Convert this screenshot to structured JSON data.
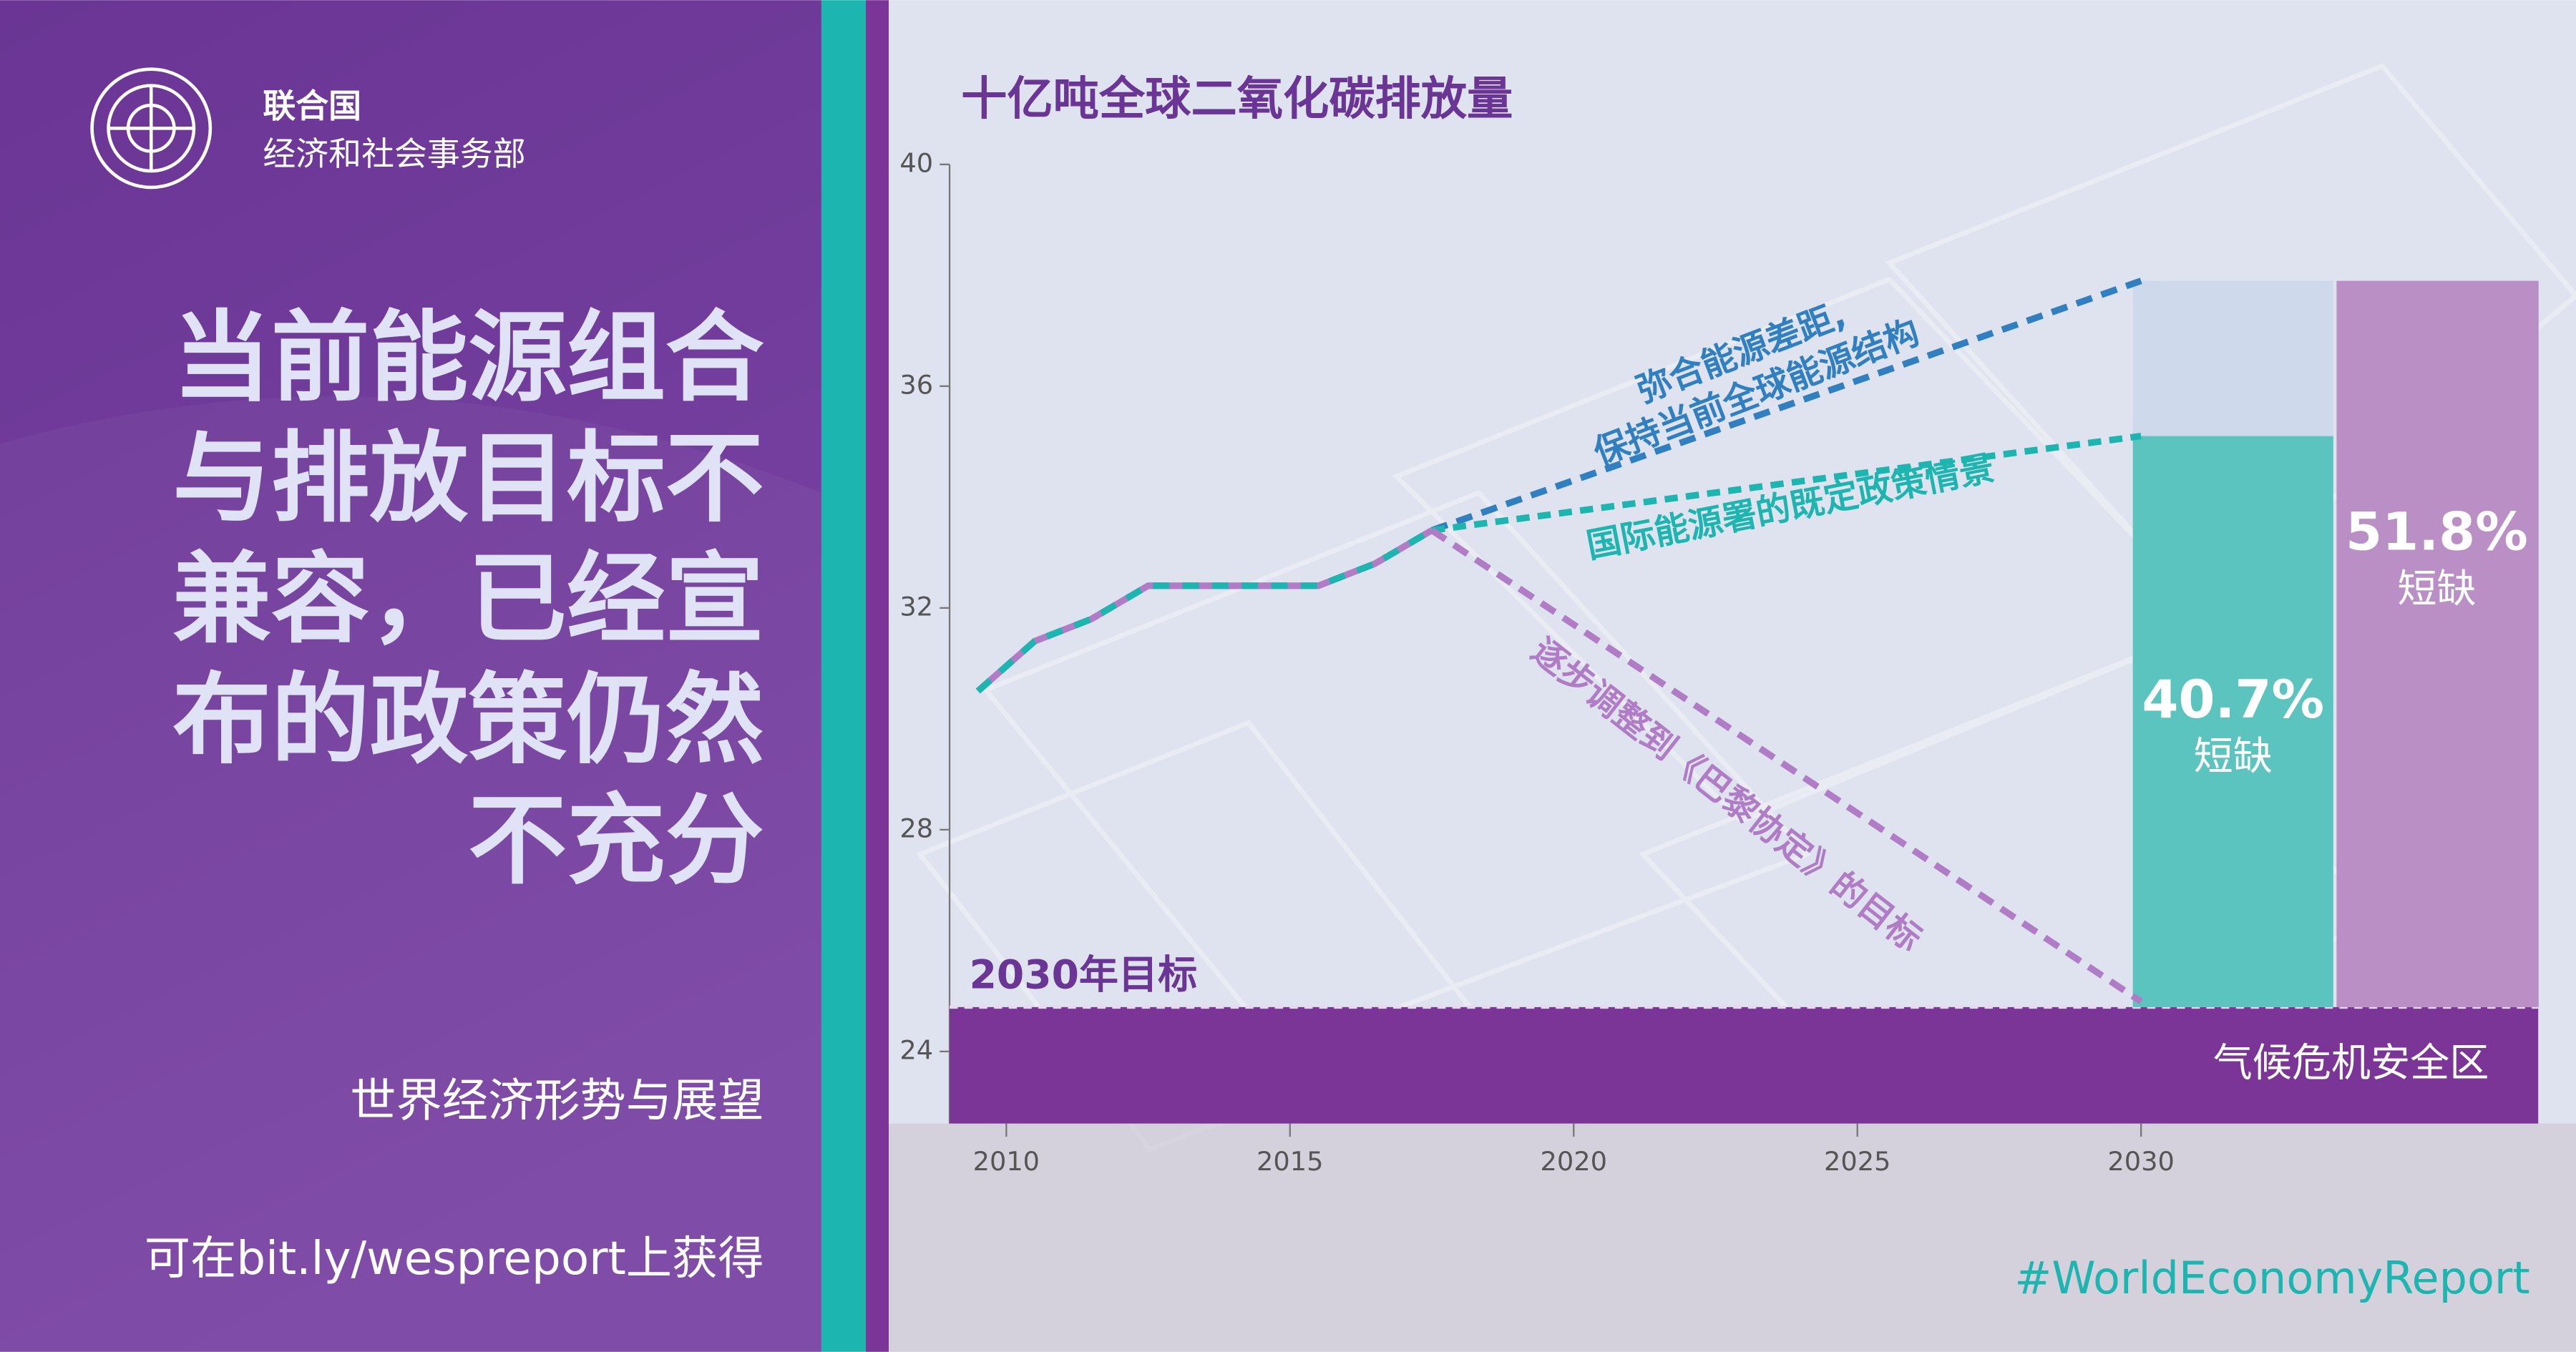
{
  "header": {
    "org": "联合国",
    "dept": "经济和社会事务部"
  },
  "headline": [
    "当前能源组合",
    "与排放目标不",
    "兼容，已经宣",
    "布的政策仍然",
    "不充分"
  ],
  "report": "世界经济形势与展望",
  "link": "可在bit.ly/wespreport上获得",
  "hashtag": "#WorldEconomyReport",
  "chart_data": {
    "type": "line",
    "title": "十亿吨全球二氧化碳排放量",
    "xlim": [
      2009,
      2037
    ],
    "xticks": [
      2010,
      2015,
      2020,
      2025,
      2030
    ],
    "ylim": [
      22.7,
      40
    ],
    "yticks": [
      24,
      28,
      32,
      36,
      40
    ],
    "series": [
      {
        "color": "#1cb5b0",
        "x": [
          2009.5,
          2010.5,
          2011.5,
          2012.5,
          2013.5,
          2014.5,
          2015.5,
          2016.5,
          2017.5
        ],
        "values": [
          30.5,
          31.4,
          31.8,
          32.4,
          32.4,
          32.4,
          32.4,
          32.8,
          33.4
        ]
      },
      {
        "name_lines": [
          "弥合能源差距,",
          "保持当前全球能源结构"
        ],
        "color": "#2f7fc1",
        "x": [
          2017.5,
          2030
        ],
        "values": [
          33.4,
          37.9
        ]
      },
      {
        "name_lines": [
          "国际能源署的既定政策情景"
        ],
        "color": "#1cb5b0",
        "x": [
          2017.5,
          2030
        ],
        "values": [
          33.4,
          35.1
        ]
      },
      {
        "name_lines": [
          "逐步调整到《巴黎协定》的目标"
        ],
        "color": "#b07cc6",
        "x": [
          2017.5,
          2030
        ],
        "values": [
          33.4,
          24.9
        ]
      }
    ],
    "target": {
      "label": "2030年目标",
      "value": 24.8
    },
    "safe_zone": "气候危机安全区",
    "gaps": {
      "values": [
        40.7,
        51.8
      ],
      "value_labels": [
        "40.7%",
        "51.8%"
      ],
      "note": "短缺"
    }
  }
}
